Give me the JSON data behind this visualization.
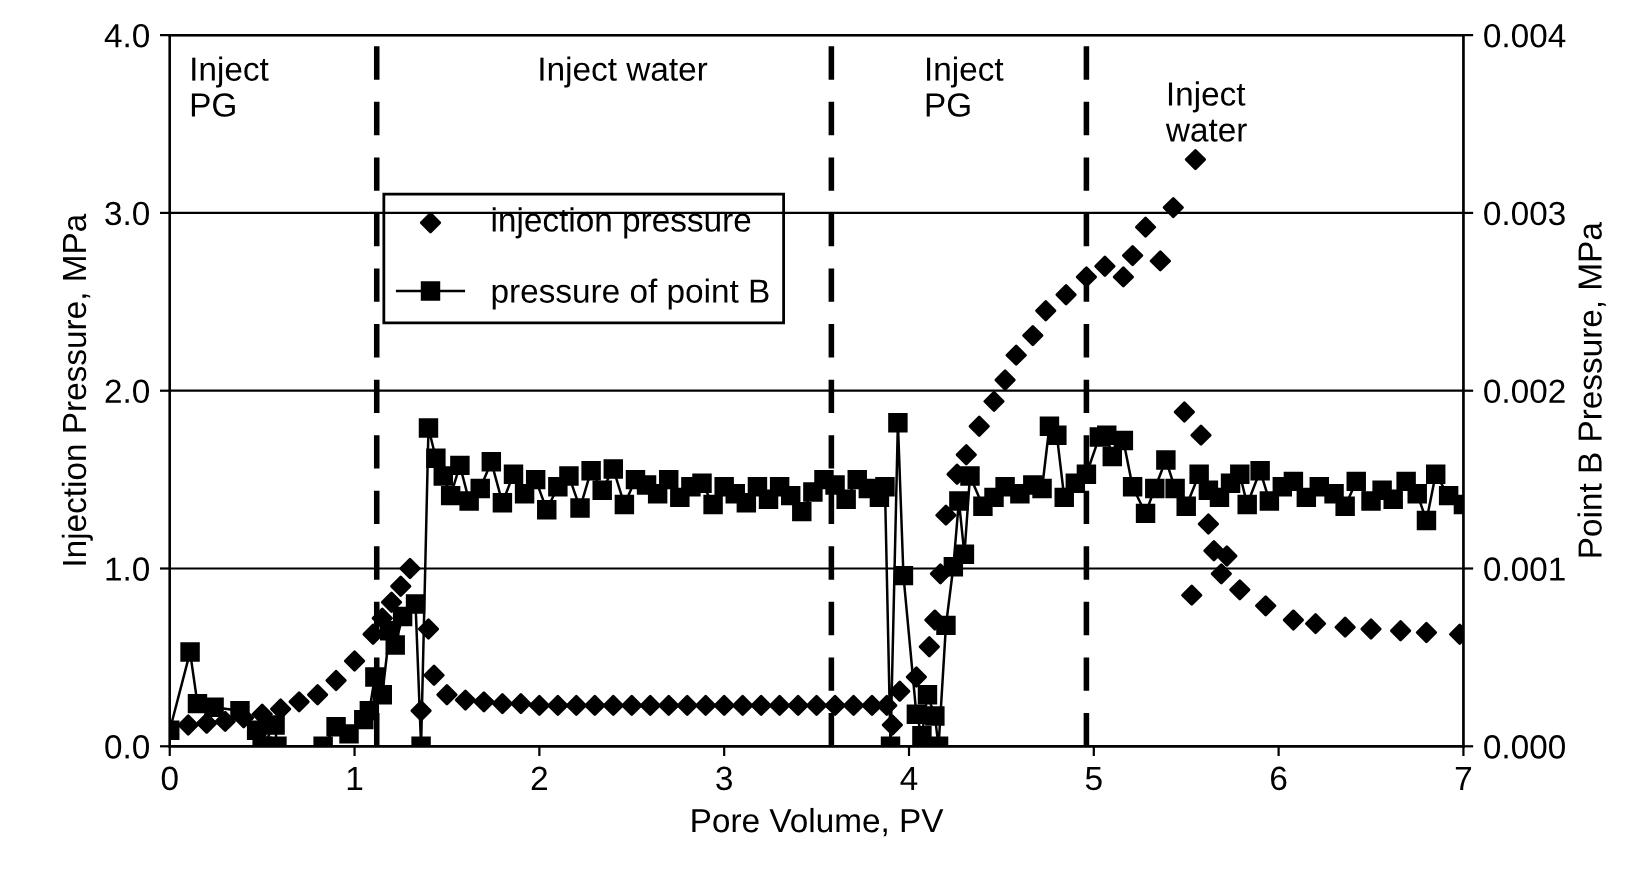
{
  "chart_data": {
    "type": "scatter",
    "xlabel": "Pore Volume, PV",
    "ylabel": "Injection Pressure, MPa",
    "y2label": "Point B Pressure, MPa",
    "xlim": [
      0,
      7
    ],
    "xticks": [
      0,
      1,
      2,
      3,
      4,
      5,
      6,
      7
    ],
    "ylim": [
      0,
      4
    ],
    "yticks": [
      {
        "value": 0,
        "label": "0.0"
      },
      {
        "value": 1,
        "label": "1.0"
      },
      {
        "value": 2,
        "label": "2.0"
      },
      {
        "value": 3,
        "label": "3.0"
      },
      {
        "value": 4,
        "label": "4.0"
      }
    ],
    "y2lim": [
      0,
      0.004
    ],
    "y2ticks": [
      {
        "value": 0,
        "label": "0.000"
      },
      {
        "value": 0.001,
        "label": "0.001"
      },
      {
        "value": 0.002,
        "label": "0.002"
      },
      {
        "value": 0.003,
        "label": "0.003"
      },
      {
        "value": 0.004,
        "label": "0.004"
      }
    ],
    "grid": "y",
    "legend": "top",
    "series": [
      {
        "name": "injection pressure",
        "marker": "diamond",
        "color": "#000000",
        "x": [
          0.1,
          0.2,
          0.3,
          0.4,
          0.5,
          0.6,
          0.7,
          0.8,
          0.9,
          1.0,
          1.1,
          1.15,
          1.2,
          1.25,
          1.3,
          1.36,
          1.4,
          1.43,
          1.5,
          1.6,
          1.7,
          1.8,
          1.9,
          2.0,
          2.1,
          2.2,
          2.3,
          2.4,
          2.5,
          2.6,
          2.7,
          2.8,
          2.9,
          3.0,
          3.1,
          3.2,
          3.3,
          3.4,
          3.5,
          3.6,
          3.7,
          3.8,
          3.88,
          3.91,
          3.95,
          4.04,
          4.11,
          4.14,
          4.17,
          4.2,
          4.26,
          4.31,
          4.38,
          4.46,
          4.52,
          4.58,
          4.67,
          4.74,
          4.85,
          4.96,
          5.06,
          5.16,
          5.21,
          5.28,
          5.36,
          5.43,
          5.49,
          5.53,
          5.55,
          5.58,
          5.62,
          5.65,
          5.69,
          5.72,
          5.79,
          5.93,
          6.08,
          6.2,
          6.36,
          6.5,
          6.66,
          6.8,
          6.98
        ],
        "values": [
          0.12,
          0.13,
          0.14,
          0.16,
          0.18,
          0.21,
          0.25,
          0.29,
          0.37,
          0.48,
          0.63,
          0.72,
          0.81,
          0.9,
          1.0,
          0.2,
          0.66,
          0.4,
          0.29,
          0.26,
          0.25,
          0.24,
          0.24,
          0.23,
          0.23,
          0.23,
          0.23,
          0.23,
          0.23,
          0.23,
          0.23,
          0.23,
          0.23,
          0.23,
          0.23,
          0.23,
          0.23,
          0.23,
          0.23,
          0.23,
          0.23,
          0.23,
          0.23,
          0.12,
          0.31,
          0.39,
          0.56,
          0.71,
          0.97,
          1.3,
          1.53,
          1.64,
          1.8,
          1.94,
          2.06,
          2.2,
          2.31,
          2.45,
          2.54,
          2.64,
          2.7,
          2.64,
          2.76,
          2.92,
          2.73,
          3.03,
          1.88,
          0.85,
          3.3,
          1.75,
          1.25,
          1.1,
          0.97,
          1.07,
          0.88,
          0.79,
          0.71,
          0.69,
          0.67,
          0.66,
          0.65,
          0.64,
          0.63
        ]
      },
      {
        "name": "pressure of point B",
        "type": "line",
        "marker": "square",
        "color": "#000000",
        "axis": "y2",
        "x": [
          0,
          0.11,
          0.15,
          0.24,
          0.38,
          0.47,
          0.5,
          0.57,
          0.58,
          0.83,
          0.9,
          0.97,
          1.05,
          1.08,
          1.11,
          1.15,
          1.19,
          1.22,
          1.26,
          1.33,
          1.36,
          1.4,
          1.44,
          1.48,
          1.52,
          1.57,
          1.62,
          1.68,
          1.74,
          1.8,
          1.86,
          1.92,
          1.98,
          2.04,
          2.1,
          2.16,
          2.22,
          2.28,
          2.34,
          2.4,
          2.46,
          2.52,
          2.58,
          2.64,
          2.7,
          2.76,
          2.82,
          2.88,
          2.94,
          3.0,
          3.06,
          3.12,
          3.18,
          3.24,
          3.3,
          3.36,
          3.42,
          3.48,
          3.54,
          3.6,
          3.66,
          3.72,
          3.78,
          3.84,
          3.87,
          3.9,
          3.94,
          3.97,
          4.04,
          4.07,
          4.1,
          4.14,
          4.16,
          4.2,
          4.24,
          4.27,
          4.3,
          4.33,
          4.4,
          4.46,
          4.52,
          4.6,
          4.67,
          4.72,
          4.76,
          4.8,
          4.84,
          4.9,
          4.96,
          5.03,
          5.07,
          5.1,
          5.16,
          5.21,
          5.28,
          5.33,
          5.39,
          5.44,
          5.5,
          5.57,
          5.62,
          5.68,
          5.74,
          5.79,
          5.83,
          5.9,
          5.95,
          6.02,
          6.08,
          6.15,
          6.22,
          6.3,
          6.36,
          6.42,
          6.5,
          6.56,
          6.62,
          6.69,
          6.75,
          6.8,
          6.85,
          6.92,
          7.0
        ],
        "values": [
          9e-05,
          0.00053,
          0.00024,
          0.00022,
          0.0002,
          9e-05,
          0,
          0.00012,
          0,
          0,
          0.00011,
          7e-05,
          0.00015,
          0.0002,
          0.00039,
          0.00029,
          0.00065,
          0.00057,
          0.00073,
          0.0008,
          0,
          0.00179,
          0.00162,
          0.00152,
          0.00141,
          0.00158,
          0.00138,
          0.00145,
          0.0016,
          0.00137,
          0.00153,
          0.00142,
          0.0015,
          0.00133,
          0.00146,
          0.00152,
          0.00134,
          0.00155,
          0.00144,
          0.00156,
          0.00136,
          0.0015,
          0.00147,
          0.00142,
          0.0015,
          0.0014,
          0.00146,
          0.00148,
          0.00136,
          0.00146,
          0.00142,
          0.00137,
          0.00146,
          0.00139,
          0.00146,
          0.00141,
          0.00132,
          0.00143,
          0.0015,
          0.00147,
          0.00139,
          0.0015,
          0.00145,
          0.0014,
          0.00146,
          0,
          0.00182,
          0.00096,
          0.00018,
          6e-05,
          0.00029,
          0.00017,
          0,
          0.00068,
          0.00101,
          0.00138,
          0.00108,
          0.00152,
          0.00135,
          0.0014,
          0.00146,
          0.00142,
          0.00147,
          0.00145,
          0.0018,
          0.00175,
          0.0014,
          0.00148,
          0.00153,
          0.00174,
          0.00175,
          0.00163,
          0.00172,
          0.00146,
          0.00131,
          0.00145,
          0.00161,
          0.00145,
          0.00135,
          0.00153,
          0.00144,
          0.0014,
          0.00148,
          0.00153,
          0.00136,
          0.00155,
          0.00138,
          0.00146,
          0.00149,
          0.0014,
          0.00146,
          0.00142,
          0.00135,
          0.00149,
          0.00138,
          0.00144,
          0.00139,
          0.00149,
          0.00142,
          0.00127,
          0.00153,
          0.00141,
          0.00136
        ]
      }
    ],
    "ref_lines": [
      {
        "axis": "x",
        "value": 1.12,
        "color": "#000000",
        "line_style": "dashed"
      },
      {
        "axis": "x",
        "value": 3.58,
        "color": "#000000",
        "line_style": "dashed"
      },
      {
        "axis": "x",
        "value": 4.96,
        "color": "#000000",
        "line_style": "dashed"
      }
    ],
    "annotations": [
      "Inject\nPG",
      "Inject water",
      "Inject\nPG",
      "Inject\nwater"
    ]
  }
}
